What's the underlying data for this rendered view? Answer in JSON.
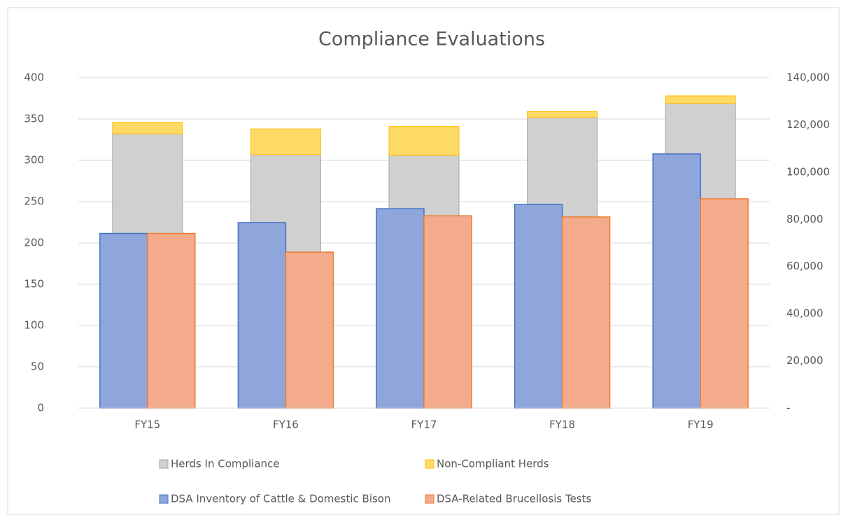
{
  "chart_data": {
    "type": "bar",
    "title": "Compliance Evaluations",
    "categories": [
      "FY15",
      "FY16",
      "FY17",
      "FY18",
      "FY19"
    ],
    "series": [
      {
        "name": "Herds In Compliance",
        "color": "#d0d0d0",
        "edge": "#a5a5a5",
        "axis": "y",
        "values": [
          332,
          307,
          306,
          352,
          369
        ]
      },
      {
        "name": "Non-Compliant Herds",
        "color": "#ffd966",
        "edge": "#ffc000",
        "axis": "y",
        "values": [
          14,
          31,
          35,
          7,
          9
        ]
      },
      {
        "name": "DSA Inventory of Cattle & Domestic Bison",
        "color": "#8fa6dd",
        "edge": "#4472c4",
        "axis": "y2",
        "values": [
          74000,
          78600,
          84500,
          86300,
          107700
        ]
      },
      {
        "name": "DSA-Related Brucellosis Tests",
        "color": "#f4ab8c",
        "edge": "#ed7d31",
        "axis": "y2",
        "values": [
          74000,
          66100,
          81500,
          81000,
          88700
        ]
      }
    ],
    "ylim": [
      0,
      400
    ],
    "yticks": [
      0,
      50,
      100,
      150,
      200,
      250,
      300,
      350,
      400
    ],
    "y2lim": [
      0,
      140000
    ],
    "y2ticks": [
      {
        "value": 0,
        "label": "-"
      },
      {
        "value": 20000,
        "label": "20,000"
      },
      {
        "value": 40000,
        "label": "40,000"
      },
      {
        "value": 60000,
        "label": "60,000"
      },
      {
        "value": 80000,
        "label": "80,000"
      },
      {
        "value": 100000,
        "label": "100,000"
      },
      {
        "value": 120000,
        "label": "120,000"
      },
      {
        "value": 140000,
        "label": "140,000"
      }
    ],
    "grid": true,
    "legend": "bottom"
  }
}
